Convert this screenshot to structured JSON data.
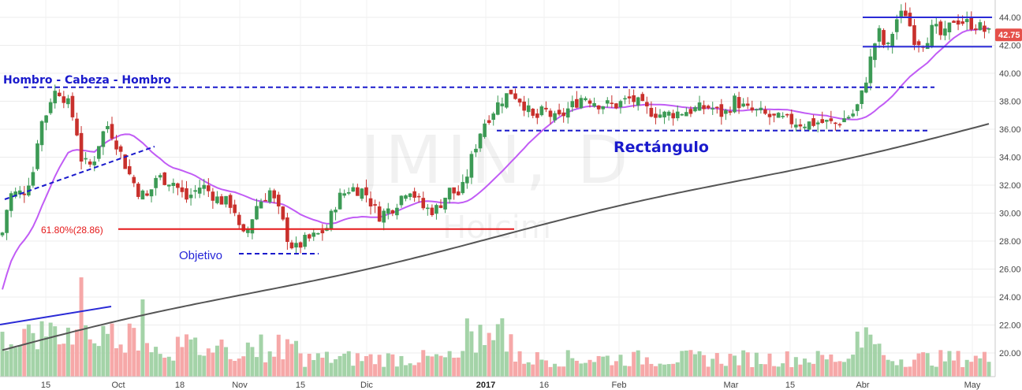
{
  "chart_data": {
    "type": "candlestick",
    "title": "",
    "watermark": {
      "symbol": "JMIN, D",
      "name": "Holcim"
    },
    "last_price_label": "42.75",
    "x_tick_labels": [
      "15",
      "Oct",
      "18",
      "Nov",
      "15",
      "Dic",
      "2017",
      "16",
      "Feb",
      "Mar",
      "15",
      "Abr",
      "May"
    ],
    "y_ticks": [
      20.0,
      22.0,
      24.0,
      26.0,
      28.0,
      30.0,
      32.0,
      34.0,
      36.0,
      38.0,
      40.0,
      42.0,
      44.0
    ],
    "y_tick_labels": [
      "20.00",
      "22.00",
      "24.00",
      "26.00",
      "28.00",
      "30.00",
      "32.00",
      "34.00",
      "36.00",
      "38.00",
      "40.00",
      "42.00",
      "44.00"
    ],
    "ylim": [
      18.4,
      45.2
    ],
    "grid": true,
    "series": [
      {
        "name": "",
        "kind": "moving-average-short",
        "color": "#c15cf5"
      },
      {
        "name": "",
        "kind": "moving-average-long",
        "color": "#555555"
      }
    ],
    "annotations": {
      "hcs_label": "Hombro - Cabeza - Hombro",
      "hcs_neckline_price": 39.0,
      "objective_label": "Objetivo",
      "objective_price": 27.1,
      "fib_label": "61.80%(28.86)",
      "fib_price": 28.86,
      "rectangle_label": "Rectángulo",
      "rectangle_top": 39.0,
      "rectangle_bottom": 35.9,
      "channel_top": 44.0,
      "channel_bottom": 41.9
    },
    "colors": {
      "up": "#3c9a55",
      "down": "#c8302c",
      "up_volume": "#9fd1a3",
      "down_volume": "#f5a3a3",
      "annotation_blue": "#1a1acc",
      "fib_red": "#e5191a",
      "price_tag": "#e5504a"
    }
  }
}
